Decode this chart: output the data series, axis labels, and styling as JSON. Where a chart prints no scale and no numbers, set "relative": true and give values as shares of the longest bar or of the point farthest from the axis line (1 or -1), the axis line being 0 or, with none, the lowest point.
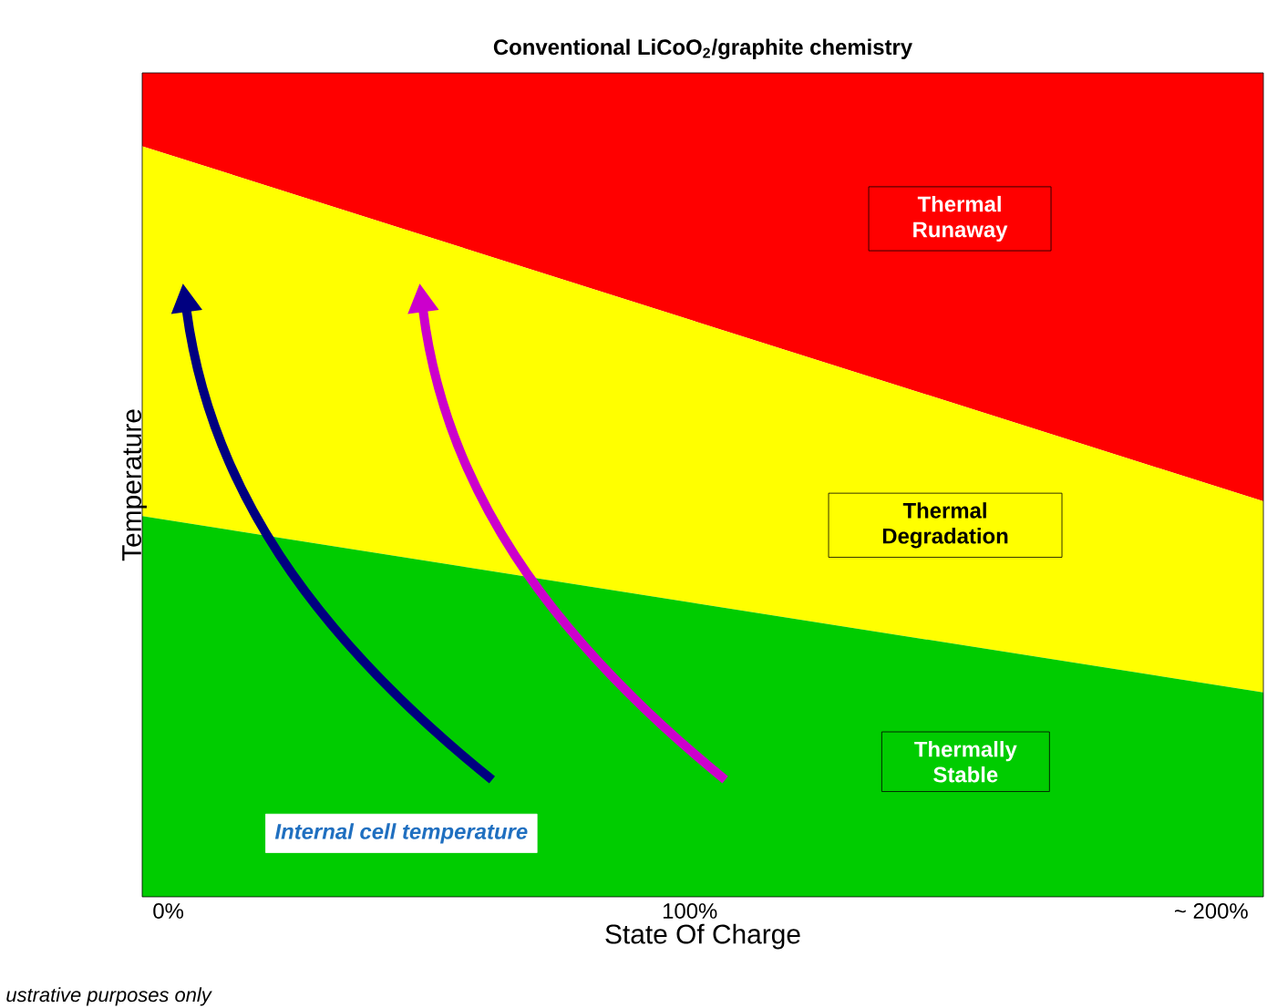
{
  "chart_data": {
    "type": "area",
    "relative": true,
    "stacked": true,
    "title": "Conventional LiCoO$_{2}$/graphite chemistry",
    "xlabel": "State Of Charge",
    "ylabel": "Temperature",
    "xlim": [
      -5,
      210
    ],
    "x": [
      -5,
      210
    ],
    "xticks": [
      {
        "value": 0,
        "label": "0%"
      },
      {
        "value": 100,
        "label": "100%"
      },
      {
        "value": 200,
        "label": "~ 200%"
      }
    ],
    "series": [
      {
        "color": "#00cc00",
        "values": [
          0.462,
          0.248
        ]
      },
      {
        "color": "#ffff00",
        "values": [
          0.449,
          0.232
        ]
      },
      {
        "color": "#ff0000",
        "values": [
          0.089,
          0.52
        ]
      }
    ],
    "annotations": [
      "Thermal Runaway",
      "Thermal Degradation",
      "Thermally Stable",
      "Internal cell temperature",
      "ustrative purposes only"
    ]
  }
}
